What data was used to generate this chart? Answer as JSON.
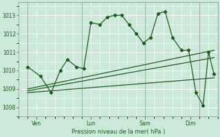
{
  "background_color": "#cce8d8",
  "grid_color": "#ffffff",
  "line_color": "#1a5c1a",
  "marker_color": "#1a5c1a",
  "xlabel": "Pression niveau de la mer( hPa )",
  "ylim": [
    1007.5,
    1013.7
  ],
  "yticks": [
    1008,
    1009,
    1010,
    1011,
    1012,
    1013
  ],
  "day_labels": [
    "Ven",
    "Lun",
    "Sam",
    "Dim"
  ],
  "day_positions": [
    0.5,
    3.5,
    6.5,
    9.0
  ],
  "vline_positions": [
    0.0,
    3.0,
    6.5,
    9.5
  ],
  "xlim": [
    -0.5,
    10.5
  ],
  "series1_x": [
    0.0,
    0.7,
    1.3,
    1.8,
    2.2,
    2.7,
    3.1,
    3.5,
    4.0,
    4.4,
    4.8,
    5.2,
    5.6,
    6.0,
    6.4,
    6.8,
    7.2,
    7.6,
    8.0,
    8.5,
    8.9,
    9.3,
    9.7,
    10.0,
    10.3
  ],
  "series1_y": [
    1010.2,
    1009.7,
    1008.8,
    1010.0,
    1010.6,
    1010.2,
    1010.1,
    1012.6,
    1012.5,
    1012.9,
    1013.0,
    1013.0,
    1012.5,
    1012.0,
    1011.5,
    1011.8,
    1013.1,
    1013.2,
    1011.8,
    1011.1,
    1011.1,
    1008.8,
    1008.1,
    1011.0,
    1009.8
  ],
  "series2_x": [
    0.0,
    10.3
  ],
  "series2_y": [
    1009.0,
    1011.1
  ],
  "series3_x": [
    0.0,
    10.3
  ],
  "series3_y": [
    1008.9,
    1010.7
  ],
  "series4_x": [
    0.0,
    10.3
  ],
  "series4_y": [
    1008.8,
    1009.6
  ],
  "figsize": [
    3.2,
    2.0
  ],
  "dpi": 100
}
